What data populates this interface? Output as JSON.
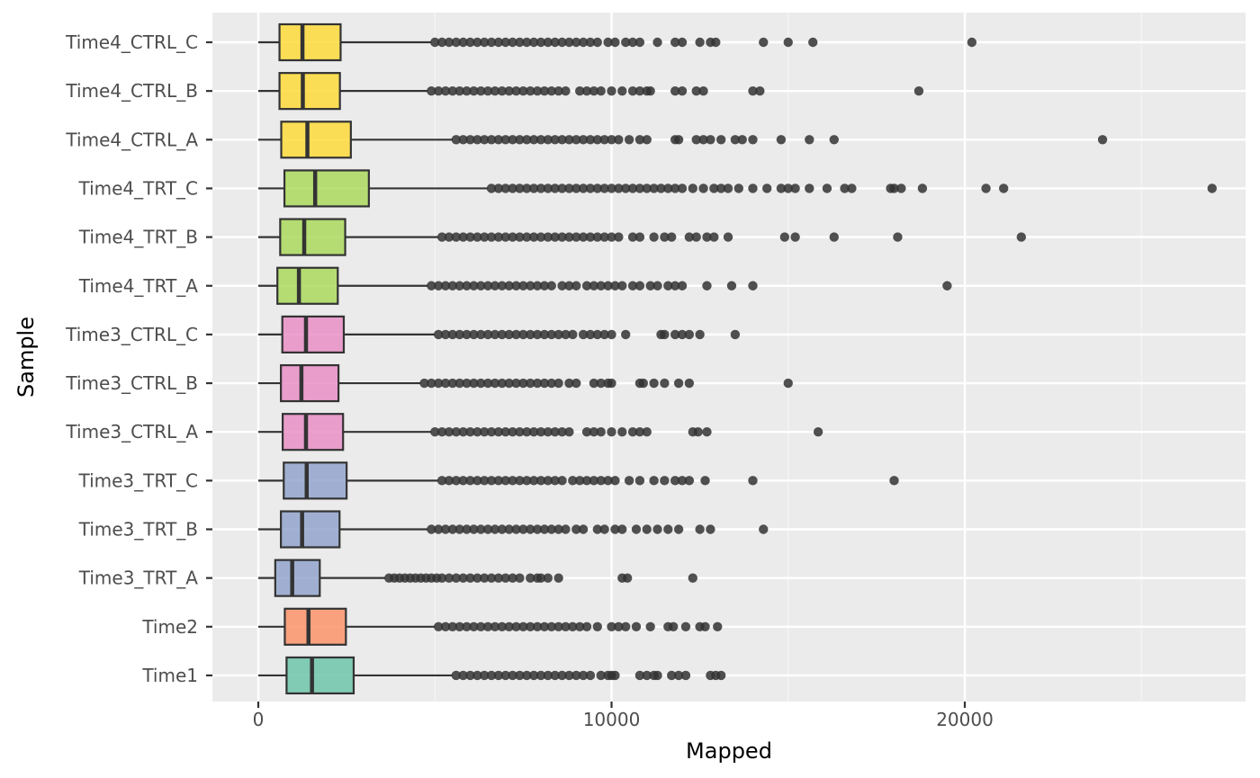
{
  "chart_data": {
    "type": "boxplot",
    "orientation": "horizontal",
    "xlabel": "Mapped",
    "ylabel": "Sample",
    "xlim": [
      -1300,
      28000
    ],
    "x_ticks": [
      0,
      10000,
      20000
    ],
    "x_tick_labels": [
      "0",
      "10000",
      "20000"
    ],
    "grid": true,
    "legend": "none",
    "panel_background": "#ebebeb",
    "categories": [
      "Time1",
      "Time2",
      "Time3_TRT_A",
      "Time3_TRT_B",
      "Time3_TRT_C",
      "Time3_CTRL_A",
      "Time3_CTRL_B",
      "Time3_CTRL_C",
      "Time4_TRT_A",
      "Time4_TRT_B",
      "Time4_TRT_C",
      "Time4_CTRL_A",
      "Time4_CTRL_B",
      "Time4_CTRL_C"
    ],
    "boxes": [
      {
        "label": "Time1",
        "color": "#66c2a5",
        "whisker_low": 0,
        "q1": 800,
        "median": 1520,
        "q3": 2700,
        "whisker_high": 5500,
        "outliers": [
          5600,
          5800,
          6000,
          6200,
          6400,
          6600,
          6800,
          7000,
          7200,
          7400,
          7600,
          7800,
          8000,
          8200,
          8400,
          8600,
          8800,
          9000,
          9200,
          9400,
          9700,
          9900,
          10000,
          10100,
          10800,
          11000,
          11200,
          11300,
          11700,
          11900,
          12100,
          12800,
          12950,
          13100
        ]
      },
      {
        "label": "Time2",
        "color": "#fc8d62",
        "whisker_low": 0,
        "q1": 750,
        "median": 1420,
        "q3": 2480,
        "whisker_high": 5000,
        "outliers": [
          5100,
          5300,
          5500,
          5700,
          5900,
          6100,
          6300,
          6500,
          6700,
          6900,
          7100,
          7300,
          7500,
          7700,
          7900,
          8100,
          8300,
          8500,
          8700,
          8900,
          9100,
          9300,
          9600,
          10000,
          10200,
          10400,
          10700,
          11100,
          11600,
          11750,
          12100,
          12500,
          12650,
          13000
        ]
      },
      {
        "label": "Time3_TRT_A",
        "color": "#8da0cb",
        "whisker_low": 0,
        "q1": 480,
        "median": 960,
        "q3": 1740,
        "whisker_high": 3600,
        "outliers": [
          3700,
          3850,
          4000,
          4150,
          4300,
          4450,
          4600,
          4750,
          4900,
          5050,
          5200,
          5400,
          5600,
          5800,
          6000,
          6200,
          6400,
          6600,
          6800,
          7000,
          7200,
          7400,
          7700,
          7900,
          8000,
          8200,
          8500,
          10300,
          10450,
          12300
        ]
      },
      {
        "label": "Time3_TRT_B",
        "color": "#8da0cb",
        "whisker_low": 0,
        "q1": 640,
        "median": 1240,
        "q3": 2300,
        "whisker_high": 4800,
        "outliers": [
          4900,
          5100,
          5300,
          5500,
          5700,
          5900,
          6100,
          6300,
          6500,
          6700,
          6900,
          7100,
          7300,
          7500,
          7700,
          7900,
          8100,
          8300,
          8500,
          8700,
          9000,
          9200,
          9600,
          9800,
          10100,
          10300,
          10700,
          11000,
          11300,
          11600,
          11900,
          12500,
          12800,
          14300
        ]
      },
      {
        "label": "Time3_TRT_C",
        "color": "#8da0cb",
        "whisker_low": 0,
        "q1": 720,
        "median": 1370,
        "q3": 2500,
        "whisker_high": 5100,
        "outliers": [
          5200,
          5400,
          5600,
          5800,
          6000,
          6200,
          6400,
          6600,
          6800,
          7000,
          7200,
          7400,
          7600,
          7800,
          8000,
          8200,
          8400,
          8600,
          8900,
          9100,
          9300,
          9500,
          9700,
          9900,
          10100,
          10500,
          10800,
          11200,
          11500,
          11800,
          12000,
          12200,
          12650,
          14000,
          18000
        ]
      },
      {
        "label": "Time3_CTRL_A",
        "color": "#e78ac3",
        "whisker_low": 0,
        "q1": 690,
        "median": 1350,
        "q3": 2400,
        "whisker_high": 4900,
        "outliers": [
          5000,
          5200,
          5400,
          5600,
          5800,
          6000,
          6200,
          6400,
          6600,
          6800,
          7000,
          7200,
          7400,
          7600,
          7800,
          8000,
          8200,
          8400,
          8600,
          8800,
          9300,
          9500,
          9700,
          10000,
          10300,
          10600,
          10800,
          11000,
          12300,
          12450,
          12700,
          15850
        ]
      },
      {
        "label": "Time3_CTRL_B",
        "color": "#e78ac3",
        "whisker_low": 0,
        "q1": 640,
        "median": 1220,
        "q3": 2270,
        "whisker_high": 4600,
        "outliers": [
          4700,
          4900,
          5100,
          5300,
          5500,
          5700,
          5900,
          6100,
          6300,
          6500,
          6700,
          6900,
          7100,
          7300,
          7500,
          7700,
          7900,
          8100,
          8300,
          8500,
          8800,
          9000,
          9500,
          9700,
          9900,
          10000,
          10800,
          10900,
          11200,
          11500,
          11900,
          12200,
          15000
        ]
      },
      {
        "label": "Time3_CTRL_C",
        "color": "#e78ac3",
        "whisker_low": 0,
        "q1": 680,
        "median": 1350,
        "q3": 2420,
        "whisker_high": 5000,
        "outliers": [
          5100,
          5300,
          5500,
          5700,
          5900,
          6100,
          6300,
          6500,
          6700,
          6900,
          7100,
          7300,
          7500,
          7700,
          7900,
          8100,
          8300,
          8500,
          8700,
          8900,
          9200,
          9400,
          9600,
          9800,
          10000,
          10400,
          11400,
          11500,
          11800,
          12000,
          12200,
          12500,
          13500
        ]
      },
      {
        "label": "Time4_TRT_A",
        "color": "#a6d854",
        "whisker_low": 0,
        "q1": 540,
        "median": 1150,
        "q3": 2250,
        "whisker_high": 4800,
        "outliers": [
          4900,
          5100,
          5300,
          5500,
          5700,
          5900,
          6100,
          6300,
          6500,
          6700,
          6900,
          7100,
          7300,
          7500,
          7700,
          7900,
          8100,
          8300,
          8600,
          8800,
          9000,
          9300,
          9500,
          9700,
          9900,
          10100,
          10300,
          10600,
          10800,
          11100,
          11300,
          11600,
          11800,
          12000,
          12700,
          13400,
          14000,
          19500
        ]
      },
      {
        "label": "Time4_TRT_B",
        "color": "#a6d854",
        "whisker_low": 0,
        "q1": 620,
        "median": 1300,
        "q3": 2460,
        "whisker_high": 5100,
        "outliers": [
          5200,
          5400,
          5600,
          5800,
          6000,
          6200,
          6400,
          6600,
          6800,
          7000,
          7200,
          7400,
          7600,
          7800,
          8000,
          8200,
          8400,
          8600,
          8800,
          9000,
          9200,
          9400,
          9600,
          9800,
          10000,
          10200,
          10600,
          10800,
          11200,
          11500,
          11700,
          12200,
          12400,
          12700,
          12900,
          13300,
          14900,
          15200,
          16300,
          18100,
          21600
        ]
      },
      {
        "label": "Time4_TRT_C",
        "color": "#a6d854",
        "whisker_low": 0,
        "q1": 740,
        "median": 1610,
        "q3": 3130,
        "whisker_high": 6500,
        "outliers": [
          6600,
          6800,
          7000,
          7200,
          7400,
          7600,
          7800,
          8000,
          8200,
          8400,
          8600,
          8800,
          9000,
          9200,
          9400,
          9600,
          9800,
          10000,
          10200,
          10400,
          10600,
          10800,
          11000,
          11200,
          11400,
          11600,
          11800,
          12000,
          12300,
          12600,
          12900,
          13100,
          13300,
          13600,
          14000,
          14400,
          14800,
          15000,
          15200,
          15600,
          16100,
          16600,
          16800,
          17900,
          18000,
          18200,
          18800,
          20600,
          21100,
          27000
        ]
      },
      {
        "label": "Time4_CTRL_A",
        "color": "#ffd92f",
        "whisker_low": 0,
        "q1": 650,
        "median": 1390,
        "q3": 2620,
        "whisker_high": 5500,
        "outliers": [
          5600,
          5800,
          6000,
          6200,
          6400,
          6600,
          6800,
          7000,
          7200,
          7400,
          7600,
          7800,
          8000,
          8200,
          8400,
          8600,
          8800,
          9000,
          9200,
          9400,
          9600,
          9800,
          10000,
          10200,
          10500,
          10800,
          11000,
          11800,
          11900,
          12400,
          12600,
          12800,
          13100,
          13500,
          13700,
          14000,
          14800,
          15600,
          16300,
          23900
        ]
      },
      {
        "label": "Time4_CTRL_B",
        "color": "#ffd92f",
        "whisker_low": 0,
        "q1": 600,
        "median": 1260,
        "q3": 2310,
        "whisker_high": 4800,
        "outliers": [
          4900,
          5100,
          5300,
          5500,
          5700,
          5900,
          6100,
          6300,
          6500,
          6700,
          6900,
          7100,
          7300,
          7500,
          7700,
          7900,
          8100,
          8300,
          8500,
          8700,
          9100,
          9300,
          9500,
          9700,
          10000,
          10300,
          10600,
          10800,
          11000,
          11100,
          11800,
          12000,
          12400,
          12600,
          14000,
          14200,
          18700
        ]
      },
      {
        "label": "Time4_CTRL_C",
        "color": "#ffd92f",
        "whisker_low": 0,
        "q1": 600,
        "median": 1250,
        "q3": 2330,
        "whisker_high": 4900,
        "outliers": [
          5000,
          5200,
          5400,
          5600,
          5800,
          6000,
          6200,
          6400,
          6600,
          6800,
          7000,
          7200,
          7400,
          7600,
          7800,
          8000,
          8200,
          8400,
          8600,
          8800,
          9000,
          9200,
          9400,
          9600,
          9900,
          10100,
          10400,
          10600,
          10800,
          11300,
          11800,
          12000,
          12500,
          12800,
          12950,
          14300,
          15000,
          15700,
          20200
        ]
      }
    ]
  }
}
